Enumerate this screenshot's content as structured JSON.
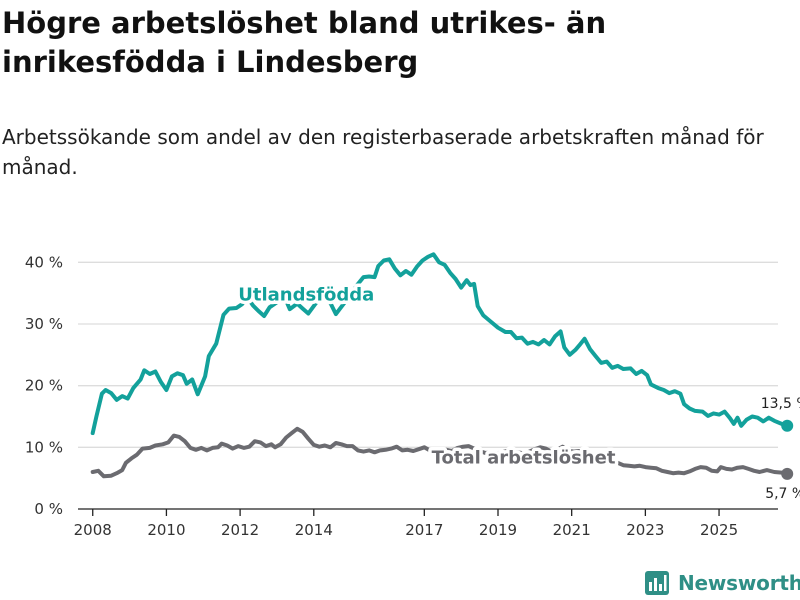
{
  "title": "Högre arbetslöshet bland utrikes- än inrikesfödda i Lindesberg",
  "subtitle": "Arbetssökande som andel av den registerbaserade arbetskraften månad för månad.",
  "brand": {
    "name": "Newsworthy",
    "logo": "bar-chart-logo-icon"
  },
  "colors": {
    "utlandsfodda": "#13a19b",
    "total": "#6b6b70",
    "grid": "#dddddd",
    "brand": "#2f8f86"
  },
  "chart_data": {
    "type": "line",
    "title": "Högre arbetslöshet bland utrikes- än inrikesfödda i Lindesberg",
    "xlabel": "",
    "ylabel": "",
    "ylim": [
      0,
      42
    ],
    "xlim": [
      2007.6,
      2026.6
    ],
    "yticks": [
      0,
      10,
      20,
      30,
      40
    ],
    "ytick_labels": [
      "0 %",
      "10 %",
      "20 %",
      "30 %",
      "40 %"
    ],
    "xticks": [
      2008,
      2010,
      2012,
      2014,
      2017,
      2019,
      2021,
      2023,
      2025
    ],
    "xtick_labels": [
      "2008",
      "2010",
      "2012",
      "2014",
      "2017",
      "2019",
      "2021",
      "2023",
      "2025"
    ],
    "grid": true,
    "series": [
      {
        "name": "Utlandsfödda",
        "label_text": "Utlandsfödda",
        "end_label": "13,5 %",
        "end_value": 13.5,
        "points": [
          [
            2008.0,
            12.3
          ],
          [
            2008.1,
            15.0
          ],
          [
            2008.25,
            18.7
          ],
          [
            2008.35,
            19.3
          ],
          [
            2008.5,
            18.8
          ],
          [
            2008.65,
            17.7
          ],
          [
            2008.8,
            18.3
          ],
          [
            2008.95,
            17.9
          ],
          [
            2009.1,
            19.6
          ],
          [
            2009.3,
            21.0
          ],
          [
            2009.4,
            22.5
          ],
          [
            2009.55,
            21.9
          ],
          [
            2009.7,
            22.3
          ],
          [
            2009.85,
            20.6
          ],
          [
            2010.0,
            19.3
          ],
          [
            2010.15,
            21.5
          ],
          [
            2010.3,
            22.0
          ],
          [
            2010.45,
            21.7
          ],
          [
            2010.55,
            20.3
          ],
          [
            2010.7,
            21.0
          ],
          [
            2010.85,
            18.6
          ],
          [
            2011.05,
            21.5
          ],
          [
            2011.15,
            24.8
          ],
          [
            2011.35,
            26.8
          ],
          [
            2011.55,
            31.5
          ],
          [
            2011.7,
            32.5
          ],
          [
            2011.9,
            32.6
          ],
          [
            2012.05,
            33.2
          ],
          [
            2012.2,
            34.3
          ],
          [
            2012.35,
            33.0
          ],
          [
            2012.5,
            32.1
          ],
          [
            2012.65,
            31.3
          ],
          [
            2012.8,
            32.7
          ],
          [
            2013.0,
            33.5
          ],
          [
            2013.2,
            34.5
          ],
          [
            2013.35,
            32.4
          ],
          [
            2013.55,
            33.3
          ],
          [
            2013.7,
            32.5
          ],
          [
            2013.85,
            31.7
          ],
          [
            2014.05,
            33.3
          ],
          [
            2014.2,
            34.4
          ],
          [
            2014.45,
            33.4
          ],
          [
            2014.6,
            31.6
          ],
          [
            2014.8,
            33.2
          ],
          [
            2015.0,
            34.7
          ],
          [
            2015.2,
            36.5
          ],
          [
            2015.35,
            37.6
          ],
          [
            2015.5,
            37.7
          ],
          [
            2015.65,
            37.6
          ],
          [
            2015.75,
            39.4
          ],
          [
            2015.9,
            40.3
          ],
          [
            2016.05,
            40.5
          ],
          [
            2016.2,
            39.0
          ],
          [
            2016.35,
            37.9
          ],
          [
            2016.5,
            38.6
          ],
          [
            2016.65,
            38.0
          ],
          [
            2016.8,
            39.3
          ],
          [
            2016.95,
            40.3
          ],
          [
            2017.1,
            40.9
          ],
          [
            2017.25,
            41.3
          ],
          [
            2017.4,
            40.0
          ],
          [
            2017.55,
            39.6
          ],
          [
            2017.7,
            38.3
          ],
          [
            2017.85,
            37.3
          ],
          [
            2018.0,
            35.9
          ],
          [
            2018.15,
            37.1
          ],
          [
            2018.25,
            36.3
          ],
          [
            2018.35,
            36.5
          ],
          [
            2018.45,
            32.9
          ],
          [
            2018.6,
            31.4
          ],
          [
            2018.8,
            30.4
          ],
          [
            2019.0,
            29.4
          ],
          [
            2019.2,
            28.7
          ],
          [
            2019.35,
            28.7
          ],
          [
            2019.5,
            27.7
          ],
          [
            2019.65,
            27.8
          ],
          [
            2019.8,
            26.8
          ],
          [
            2019.95,
            27.1
          ],
          [
            2020.1,
            26.7
          ],
          [
            2020.25,
            27.4
          ],
          [
            2020.4,
            26.7
          ],
          [
            2020.55,
            28.0
          ],
          [
            2020.7,
            28.8
          ],
          [
            2020.8,
            26.2
          ],
          [
            2020.95,
            25.0
          ],
          [
            2021.1,
            25.8
          ],
          [
            2021.2,
            26.5
          ],
          [
            2021.35,
            27.6
          ],
          [
            2021.5,
            25.9
          ],
          [
            2021.65,
            24.8
          ],
          [
            2021.8,
            23.7
          ],
          [
            2021.95,
            23.9
          ],
          [
            2022.1,
            22.9
          ],
          [
            2022.25,
            23.2
          ],
          [
            2022.4,
            22.7
          ],
          [
            2022.6,
            22.8
          ],
          [
            2022.75,
            21.9
          ],
          [
            2022.9,
            22.4
          ],
          [
            2023.05,
            21.7
          ],
          [
            2023.15,
            20.2
          ],
          [
            2023.35,
            19.6
          ],
          [
            2023.5,
            19.3
          ],
          [
            2023.65,
            18.8
          ],
          [
            2023.8,
            19.1
          ],
          [
            2023.95,
            18.7
          ],
          [
            2024.05,
            17.0
          ],
          [
            2024.2,
            16.3
          ],
          [
            2024.35,
            15.9
          ],
          [
            2024.55,
            15.8
          ],
          [
            2024.7,
            15.1
          ],
          [
            2024.85,
            15.5
          ],
          [
            2025.0,
            15.3
          ],
          [
            2025.15,
            15.8
          ],
          [
            2025.3,
            14.7
          ],
          [
            2025.4,
            13.8
          ],
          [
            2025.5,
            14.8
          ],
          [
            2025.6,
            13.5
          ],
          [
            2025.75,
            14.5
          ],
          [
            2025.9,
            15.0
          ],
          [
            2026.05,
            14.8
          ],
          [
            2026.2,
            14.2
          ],
          [
            2026.35,
            14.8
          ],
          [
            2026.5,
            14.3
          ],
          [
            2026.7,
            13.8
          ],
          [
            2026.85,
            13.5
          ]
        ]
      },
      {
        "name": "Total arbetslöshet",
        "label_text": "Total arbetslöshet",
        "end_label": "5,7 %",
        "end_value": 5.7,
        "points": [
          [
            2008.0,
            6.0
          ],
          [
            2008.15,
            6.2
          ],
          [
            2008.3,
            5.3
          ],
          [
            2008.5,
            5.4
          ],
          [
            2008.65,
            5.8
          ],
          [
            2008.8,
            6.3
          ],
          [
            2008.9,
            7.5
          ],
          [
            2009.05,
            8.2
          ],
          [
            2009.2,
            8.8
          ],
          [
            2009.35,
            9.8
          ],
          [
            2009.55,
            9.9
          ],
          [
            2009.7,
            10.3
          ],
          [
            2009.9,
            10.5
          ],
          [
            2010.05,
            10.8
          ],
          [
            2010.2,
            11.9
          ],
          [
            2010.35,
            11.7
          ],
          [
            2010.5,
            11.0
          ],
          [
            2010.65,
            9.9
          ],
          [
            2010.8,
            9.6
          ],
          [
            2010.95,
            9.9
          ],
          [
            2011.1,
            9.5
          ],
          [
            2011.25,
            9.9
          ],
          [
            2011.4,
            10.0
          ],
          [
            2011.5,
            10.6
          ],
          [
            2011.65,
            10.3
          ],
          [
            2011.8,
            9.8
          ],
          [
            2011.95,
            10.2
          ],
          [
            2012.1,
            9.9
          ],
          [
            2012.25,
            10.1
          ],
          [
            2012.4,
            11.0
          ],
          [
            2012.55,
            10.8
          ],
          [
            2012.7,
            10.2
          ],
          [
            2012.85,
            10.5
          ],
          [
            2012.95,
            10.0
          ],
          [
            2013.1,
            10.5
          ],
          [
            2013.25,
            11.6
          ],
          [
            2013.4,
            12.3
          ],
          [
            2013.55,
            13.0
          ],
          [
            2013.7,
            12.5
          ],
          [
            2013.85,
            11.4
          ],
          [
            2014.0,
            10.4
          ],
          [
            2014.15,
            10.1
          ],
          [
            2014.3,
            10.3
          ],
          [
            2014.45,
            10.0
          ],
          [
            2014.6,
            10.7
          ],
          [
            2014.75,
            10.5
          ],
          [
            2014.9,
            10.2
          ],
          [
            2015.05,
            10.2
          ],
          [
            2015.2,
            9.5
          ],
          [
            2015.35,
            9.3
          ],
          [
            2015.5,
            9.5
          ],
          [
            2015.65,
            9.2
          ],
          [
            2015.8,
            9.5
          ],
          [
            2015.95,
            9.6
          ],
          [
            2016.1,
            9.8
          ],
          [
            2016.25,
            10.1
          ],
          [
            2016.4,
            9.5
          ],
          [
            2016.55,
            9.6
          ],
          [
            2016.7,
            9.4
          ],
          [
            2016.85,
            9.7
          ],
          [
            2017.0,
            10.0
          ],
          [
            2017.15,
            9.5
          ],
          [
            2017.3,
            9.1
          ],
          [
            2017.45,
            9.5
          ],
          [
            2017.6,
            9.6
          ],
          [
            2017.75,
            9.4
          ],
          [
            2017.9,
            9.9
          ],
          [
            2018.05,
            10.1
          ],
          [
            2018.2,
            10.2
          ],
          [
            2018.35,
            9.8
          ],
          [
            2018.5,
            9.4
          ],
          [
            2018.65,
            9.1
          ],
          [
            2018.8,
            9.1
          ],
          [
            2018.95,
            9.0
          ],
          [
            2019.1,
            9.2
          ],
          [
            2019.25,
            9.4
          ],
          [
            2019.4,
            9.2
          ],
          [
            2019.55,
            9.2
          ],
          [
            2019.7,
            9.0
          ],
          [
            2019.85,
            9.3
          ],
          [
            2020.0,
            9.7
          ],
          [
            2020.15,
            10.0
          ],
          [
            2020.3,
            9.8
          ],
          [
            2020.45,
            9.3
          ],
          [
            2020.6,
            9.6
          ],
          [
            2020.75,
            10.1
          ],
          [
            2020.9,
            9.5
          ],
          [
            2021.05,
            9.3
          ],
          [
            2021.2,
            9.4
          ],
          [
            2021.35,
            9.0
          ],
          [
            2021.5,
            8.8
          ],
          [
            2021.65,
            8.6
          ],
          [
            2021.8,
            8.4
          ],
          [
            2021.95,
            8.1
          ],
          [
            2022.1,
            7.7
          ],
          [
            2022.25,
            7.5
          ],
          [
            2022.4,
            7.1
          ],
          [
            2022.55,
            7.0
          ],
          [
            2022.7,
            6.9
          ],
          [
            2022.85,
            7.0
          ],
          [
            2023.0,
            6.8
          ],
          [
            2023.15,
            6.7
          ],
          [
            2023.3,
            6.6
          ],
          [
            2023.45,
            6.2
          ],
          [
            2023.6,
            6.0
          ],
          [
            2023.75,
            5.8
          ],
          [
            2023.9,
            5.9
          ],
          [
            2024.05,
            5.8
          ],
          [
            2024.2,
            6.1
          ],
          [
            2024.35,
            6.5
          ],
          [
            2024.5,
            6.8
          ],
          [
            2024.65,
            6.7
          ],
          [
            2024.8,
            6.2
          ],
          [
            2024.95,
            6.1
          ],
          [
            2025.05,
            6.8
          ],
          [
            2025.2,
            6.5
          ],
          [
            2025.35,
            6.4
          ],
          [
            2025.5,
            6.7
          ],
          [
            2025.65,
            6.8
          ],
          [
            2025.8,
            6.5
          ],
          [
            2025.95,
            6.2
          ],
          [
            2026.1,
            6.0
          ],
          [
            2026.3,
            6.3
          ],
          [
            2026.5,
            6.0
          ],
          [
            2026.7,
            5.9
          ],
          [
            2026.85,
            5.7
          ]
        ]
      }
    ]
  }
}
